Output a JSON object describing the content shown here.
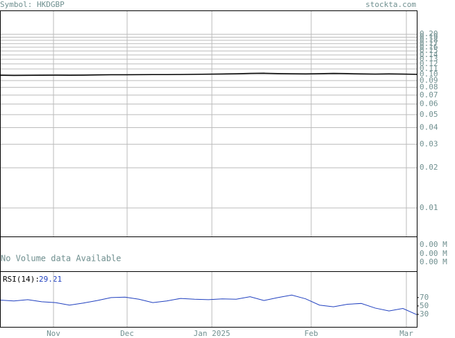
{
  "header": {
    "symbol": "Symbol: HKDGBP",
    "site": "stockta.com"
  },
  "chart_data": [
    {
      "type": "line",
      "log_scale": true,
      "grid": true,
      "x": [
        0,
        2,
        4,
        6,
        8,
        10,
        12,
        14,
        16,
        18,
        20,
        22,
        24,
        26,
        28,
        30,
        32,
        34,
        36,
        38,
        40,
        42,
        44,
        46,
        48,
        50,
        52,
        54,
        56,
        58,
        60
      ],
      "xlim": [
        0,
        60
      ],
      "xticks": [
        {
          "value": 7.7,
          "label": "Nov"
        },
        {
          "value": 18.3,
          "label": "Dec"
        },
        {
          "value": 30.5,
          "label": "Jan 2025"
        },
        {
          "value": 44.8,
          "label": "Feb"
        },
        {
          "value": 58.5,
          "label": "Mar"
        }
      ],
      "ylim": [
        0.00612,
        0.3015
      ],
      "yticks": [
        0.01,
        0.02,
        0.03,
        0.04,
        0.05,
        0.06,
        0.07,
        0.08,
        0.09,
        {
          "value": 0.1,
          "label": "0.10"
        },
        0.11,
        0.12,
        0.13,
        0.14,
        0.15,
        0.16,
        0.17,
        0.18,
        0.19,
        {
          "value": 0.2,
          "label": "0.20"
        }
      ],
      "series": [
        {
          "color": "#000000",
          "values": [
            0.0985,
            0.0983,
            0.0984,
            0.0986,
            0.0987,
            0.0985,
            0.0987,
            0.0992,
            0.0995,
            0.0994,
            0.0996,
            0.0998,
            0.0997,
            0.0999,
            0.1002,
            0.1005,
            0.1008,
            0.1012,
            0.1018,
            0.1021,
            0.1016,
            0.1012,
            0.101,
            0.1014,
            0.1018,
            0.1015,
            0.101,
            0.1007,
            0.1009,
            0.1006,
            0.1002
          ]
        }
      ]
    },
    {
      "type": "text-panel",
      "annotation": "No Volume data Available",
      "labels": [
        "0.00 M",
        "0.00 M",
        "0.00 M"
      ]
    },
    {
      "type": "line",
      "label": "RSI(14):",
      "current": 29.21,
      "ylim": [
        0,
        133
      ],
      "yticks": [
        30,
        50,
        70
      ],
      "series": [
        {
          "color": "#1f3fbf",
          "values": [
            64,
            62,
            65,
            60,
            58,
            52,
            57,
            63,
            70,
            71,
            66,
            58,
            62,
            68,
            66,
            65,
            67,
            66,
            72,
            63,
            70,
            76,
            67,
            52,
            48,
            54,
            56,
            45,
            38,
            44,
            29.21
          ]
        }
      ]
    }
  ]
}
